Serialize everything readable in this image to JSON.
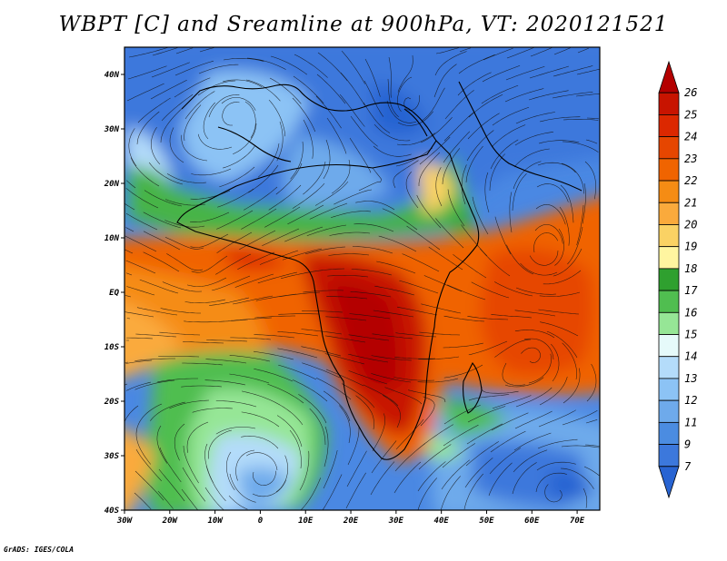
{
  "title": "WBPT [C] and Sreamline at 900hPa, VT: 2020121521",
  "credit": "GrADS: IGES/COLA",
  "map": {
    "lon_ticks": [
      "30W",
      "20W",
      "10W",
      "0",
      "10E",
      "20E",
      "30E",
      "40E",
      "50E",
      "60E",
      "70E"
    ],
    "lat_ticks": [
      "40N",
      "30N",
      "20N",
      "10N",
      "EQ",
      "10S",
      "20S",
      "30S",
      "40S"
    ],
    "lon_range": [
      -30,
      75
    ],
    "lat_range": [
      -40,
      45
    ]
  },
  "colorbar": {
    "labels": [
      "26",
      "25",
      "24",
      "23",
      "22",
      "21",
      "20",
      "19",
      "18",
      "17",
      "16",
      "15",
      "14",
      "13",
      "12",
      "11",
      "9",
      "7"
    ],
    "colors": [
      "#b40000",
      "#c81400",
      "#dc2800",
      "#e64600",
      "#f06400",
      "#f58c14",
      "#faaa3c",
      "#fad264",
      "#fff5a0",
      "#2fa02f",
      "#50be50",
      "#96e696",
      "#e6fafa",
      "#b4dcfa",
      "#8cc3f5",
      "#6eaaeb",
      "#4b8ce1",
      "#3c78dc",
      "#2864d2"
    ]
  },
  "palette": {
    "ocean_cold": "#2d6ed7",
    "ocean_mid": "#73aaf0",
    "green": "#46b446",
    "hot_red": "#c82814",
    "orange": "#eb6e14"
  }
}
